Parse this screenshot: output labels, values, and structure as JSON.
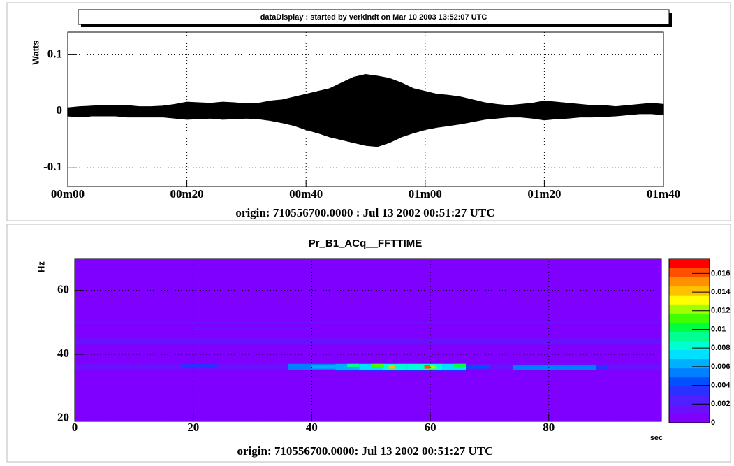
{
  "chart_data": [
    {
      "type": "band",
      "title": "dataDisplay : started by verkindt on Mar 10 2003 13:52:07 UTC",
      "ylabel": "Watts",
      "xlabel": "origin: 710556700.0000 : Jul 13 2002 00:51:27 UTC",
      "color": "#000000",
      "grid": true,
      "xlim": [
        0,
        100
      ],
      "xticks": [
        {
          "value": 0,
          "label": "00m00"
        },
        {
          "value": 20,
          "label": "00m20"
        },
        {
          "value": 40,
          "label": "00m40"
        },
        {
          "value": 60,
          "label": "01m00"
        },
        {
          "value": 80,
          "label": "01m20"
        },
        {
          "value": 100,
          "label": "01m40"
        }
      ],
      "ylim": [
        -0.133,
        0.14
      ],
      "yticks": [
        -0.1,
        0,
        0.1
      ],
      "x": [
        0,
        2,
        4,
        6,
        8,
        10,
        12,
        14,
        16,
        18,
        20,
        22,
        24,
        26,
        28,
        30,
        32,
        34,
        36,
        38,
        40,
        42,
        44,
        46,
        48,
        50,
        52,
        54,
        56,
        58,
        60,
        62,
        64,
        66,
        68,
        70,
        72,
        74,
        76,
        78,
        80,
        82,
        84,
        86,
        88,
        90,
        92,
        94,
        96,
        98,
        100
      ],
      "series": [
        {
          "values": [
            0.006,
            0.008,
            0.009,
            0.01,
            0.01,
            0.01,
            0.008,
            0.008,
            0.009,
            0.012,
            0.016,
            0.015,
            0.014,
            0.016,
            0.015,
            0.013,
            0.014,
            0.018,
            0.02,
            0.025,
            0.03,
            0.035,
            0.04,
            0.05,
            0.06,
            0.065,
            0.062,
            0.058,
            0.05,
            0.04,
            0.035,
            0.03,
            0.028,
            0.025,
            0.02,
            0.015,
            0.012,
            0.01,
            0.012,
            0.014,
            0.018,
            0.016,
            0.014,
            0.012,
            0.01,
            0.01,
            0.008,
            0.01,
            0.012,
            0.014,
            0.012
          ]
        },
        {
          "values": [
            -0.008,
            -0.01,
            -0.008,
            -0.008,
            -0.008,
            -0.01,
            -0.01,
            -0.01,
            -0.01,
            -0.012,
            -0.014,
            -0.013,
            -0.012,
            -0.014,
            -0.013,
            -0.012,
            -0.013,
            -0.016,
            -0.02,
            -0.025,
            -0.032,
            -0.038,
            -0.045,
            -0.05,
            -0.055,
            -0.06,
            -0.062,
            -0.055,
            -0.045,
            -0.038,
            -0.032,
            -0.028,
            -0.025,
            -0.022,
            -0.018,
            -0.014,
            -0.012,
            -0.01,
            -0.01,
            -0.012,
            -0.015,
            -0.013,
            -0.012,
            -0.01,
            -0.01,
            -0.009,
            -0.008,
            -0.006,
            -0.004,
            -0.004,
            -0.006
          ]
        }
      ]
    },
    {
      "type": "heatmap",
      "title": "Pr_B1_ACq__FFTTIME",
      "ylabel": "Hz",
      "xunit": "sec",
      "xlabel": "origin: 710556700.0000: Jul 13 2002 00:51:27 UTC",
      "grid": true,
      "xlim": [
        0,
        99
      ],
      "xticks": [
        0,
        20,
        40,
        60,
        80
      ],
      "ylim": [
        19,
        70
      ],
      "yticks": [
        20,
        40,
        60
      ],
      "zlim": [
        0,
        0.0176
      ],
      "zticks": [
        0,
        0.002,
        0.004,
        0.006,
        0.008,
        0.01,
        0.012,
        0.014,
        0.016
      ],
      "palette": [
        "#7f00ff",
        "#6a10ff",
        "#4f20ff",
        "#2a30ff",
        "#0050ff",
        "#0080ff",
        "#00b0ff",
        "#00e0ff",
        "#00ffd0",
        "#00ff90",
        "#00ff40",
        "#40ff00",
        "#a0ff00",
        "#ffff00",
        "#ffc000",
        "#ff9000",
        "#ff5000",
        "#ff0000"
      ],
      "cells": [
        {
          "x": [
            0,
            99
          ],
          "y": [
            19,
            70
          ],
          "z": 0.0009
        },
        {
          "x": [
            0,
            99
          ],
          "y": [
            49.5,
            50.5
          ],
          "z": 0.0015
        },
        {
          "x": [
            0,
            99
          ],
          "y": [
            43,
            45
          ],
          "z": 0.0017
        },
        {
          "x": [
            0,
            99
          ],
          "y": [
            35,
            37
          ],
          "z": 0.0013
        },
        {
          "x": [
            20,
            40
          ],
          "y": [
            47.5,
            48.5
          ],
          "z": 0.0013
        },
        {
          "x": [
            2,
            14
          ],
          "y": [
            36,
            37
          ],
          "z": 0.0019
        },
        {
          "x": [
            18,
            24
          ],
          "y": [
            36,
            37
          ],
          "z": 0.003
        },
        {
          "x": [
            44,
            66
          ],
          "y": [
            34.5,
            35.5
          ],
          "z": 0.0035
        },
        {
          "x": [
            36,
            44
          ],
          "y": [
            35,
            37
          ],
          "z": 0.005
        },
        {
          "x": [
            40,
            44
          ],
          "y": [
            35.5,
            36.5
          ],
          "z": 0.0065
        },
        {
          "x": [
            44,
            48
          ],
          "y": [
            35,
            37
          ],
          "z": 0.006
        },
        {
          "x": [
            46,
            48
          ],
          "y": [
            36,
            37
          ],
          "z": 0.009
        },
        {
          "x": [
            48,
            52
          ],
          "y": [
            35,
            37
          ],
          "z": 0.0075
        },
        {
          "x": [
            50,
            52
          ],
          "y": [
            36,
            37
          ],
          "z": 0.011
        },
        {
          "x": [
            52,
            56
          ],
          "y": [
            35,
            37
          ],
          "z": 0.0085
        },
        {
          "x": [
            53,
            54
          ],
          "y": [
            35.5,
            36.5
          ],
          "z": 0.014
        },
        {
          "x": [
            56,
            62
          ],
          "y": [
            35,
            37
          ],
          "z": 0.008
        },
        {
          "x": [
            59,
            60
          ],
          "y": [
            35.5,
            36.5
          ],
          "z": 0.0165
        },
        {
          "x": [
            60,
            61
          ],
          "y": [
            35.5,
            36.5
          ],
          "z": 0.012
        },
        {
          "x": [
            62,
            66
          ],
          "y": [
            35,
            37
          ],
          "z": 0.007
        },
        {
          "x": [
            64,
            66
          ],
          "y": [
            36,
            37
          ],
          "z": 0.01
        },
        {
          "x": [
            66,
            70
          ],
          "y": [
            35.5,
            36.5
          ],
          "z": 0.004
        },
        {
          "x": [
            74,
            88
          ],
          "y": [
            35,
            36.5
          ],
          "z": 0.0055
        },
        {
          "x": [
            88,
            90
          ],
          "y": [
            35,
            36.5
          ],
          "z": 0.003
        }
      ]
    }
  ]
}
